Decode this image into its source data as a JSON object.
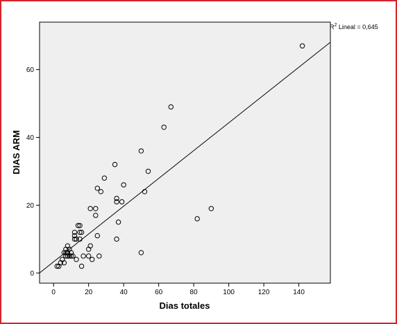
{
  "chart_data": {
    "type": "scatter",
    "xlabel": "Dias totales",
    "ylabel": "DIAS ARM",
    "xlim": [
      -8,
      158
    ],
    "ylim": [
      -3,
      74
    ],
    "xticks": [
      0,
      20,
      40,
      60,
      80,
      100,
      120,
      140
    ],
    "yticks": [
      0,
      20,
      40,
      60
    ],
    "grid": false,
    "background_color": "#efefef",
    "marker_color": "#000000",
    "fit_line": {
      "intercept": 3.3,
      "slope": 0.41
    },
    "annotation": {
      "r2_prefix": "R",
      "r2_sup": "2",
      "r2_text": " Lineal = 0,645"
    },
    "points": [
      [
        142,
        67
      ],
      [
        67,
        49
      ],
      [
        63,
        43
      ],
      [
        50,
        36
      ],
      [
        35,
        32
      ],
      [
        54,
        30
      ],
      [
        29,
        28
      ],
      [
        25,
        25
      ],
      [
        27,
        24
      ],
      [
        40,
        26
      ],
      [
        52,
        24
      ],
      [
        36,
        22
      ],
      [
        36,
        21
      ],
      [
        39,
        21
      ],
      [
        21,
        19
      ],
      [
        24,
        19
      ],
      [
        24,
        17
      ],
      [
        37,
        15
      ],
      [
        82,
        16
      ],
      [
        90,
        19
      ],
      [
        15,
        14
      ],
      [
        14,
        14
      ],
      [
        12,
        12
      ],
      [
        15,
        12
      ],
      [
        16,
        12
      ],
      [
        12,
        11
      ],
      [
        12,
        10
      ],
      [
        13,
        10
      ],
      [
        15,
        10
      ],
      [
        25,
        11
      ],
      [
        36,
        10
      ],
      [
        8,
        8
      ],
      [
        7,
        7
      ],
      [
        9,
        7
      ],
      [
        7,
        6
      ],
      [
        8,
        6
      ],
      [
        10,
        6
      ],
      [
        6,
        6
      ],
      [
        21,
        8
      ],
      [
        20,
        7
      ],
      [
        8,
        5
      ],
      [
        9,
        5
      ],
      [
        10,
        5
      ],
      [
        17,
        5
      ],
      [
        20,
        5
      ],
      [
        26,
        5
      ],
      [
        7,
        5
      ],
      [
        11,
        5
      ],
      [
        13,
        4
      ],
      [
        22,
        4
      ],
      [
        5,
        4
      ],
      [
        4,
        3
      ],
      [
        6,
        3
      ],
      [
        3,
        2
      ],
      [
        2,
        2
      ],
      [
        16,
        2
      ],
      [
        50,
        6
      ]
    ]
  }
}
